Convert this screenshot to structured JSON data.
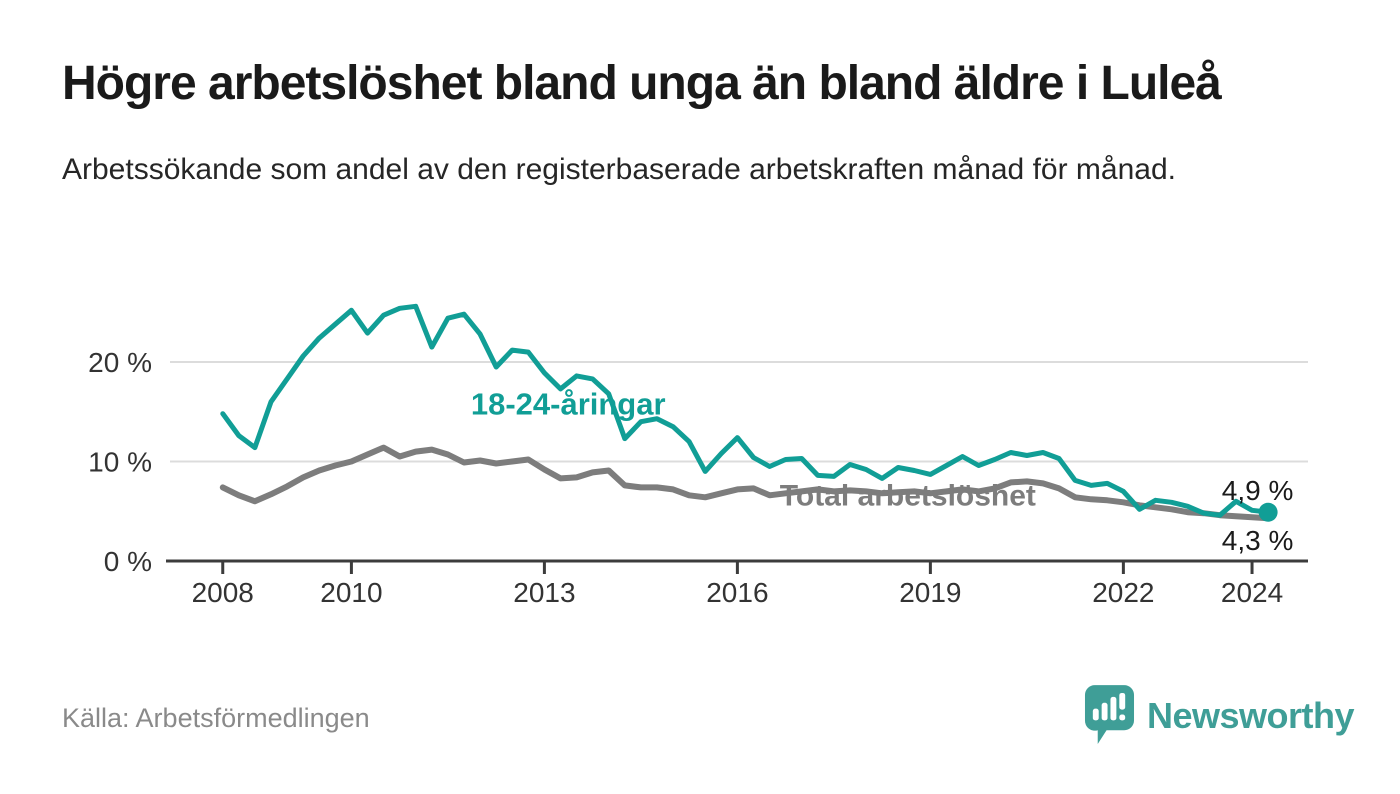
{
  "page": {
    "background": "#ffffff"
  },
  "header": {
    "title": "Högre arbetslöshet bland unga än bland äldre i Luleå",
    "subtitle": "Arbetssökande som andel av den registerbaserade arbetskraften månad för månad."
  },
  "footer": {
    "source": "Källa: Arbetsförmedlingen",
    "brand": "Newsworthy",
    "logo_icon": "newsworthy-speech-bubble-bar-chart-icon"
  },
  "colors": {
    "young_line": "#119e96",
    "total_line": "#7d7d7d",
    "axis_text": "#333333",
    "axis_line": "#3c3c3c",
    "grid": "#dcdcdc",
    "annotation_text": "#1a1a1a",
    "brand_teal": "#3f9e97",
    "title_text": "#1a1a1a",
    "source_text": "#8a8a8a"
  },
  "chart_data": {
    "type": "line",
    "title": "Högre arbetslöshet bland unga än bland äldre i Luleå",
    "subtitle": "Arbetssökande som andel av den registerbaserade arbetskraften månad för månad.",
    "source": "Källa: Arbetsförmedlingen",
    "unit": "percent of registered labour force",
    "x_unit": "year (monthly curve, values approximated at quarterly resolution)",
    "x_start": 2008.0,
    "x_step": 0.25,
    "xlim": [
      2007.18,
      2024.87
    ],
    "ylim": [
      0,
      27
    ],
    "x_ticks": [
      2008,
      2010,
      2013,
      2016,
      2019,
      2022,
      2024
    ],
    "y_ticks": [
      0,
      10,
      20
    ],
    "y_tick_suffix": " %",
    "grid": "horizontal-only",
    "legend": "inline-labels-on-chart",
    "series": [
      {
        "name": "Total arbetslöshet",
        "color": "#7d7d7d",
        "stroke_width": 6,
        "end_dot": false,
        "end_label": "4,3 %",
        "last_value": 4.3,
        "label": {
          "text": "Total arbetslöshet",
          "x": 2018.65,
          "y": 5.6,
          "size": 30
        },
        "values": [
          7.4,
          6.6,
          6.0,
          6.7,
          7.5,
          8.4,
          9.1,
          9.6,
          10.0,
          10.7,
          11.4,
          10.5,
          11.0,
          11.2,
          10.7,
          9.9,
          10.1,
          9.8,
          10.0,
          10.2,
          9.2,
          8.3,
          8.4,
          8.9,
          9.1,
          7.6,
          7.4,
          7.4,
          7.2,
          6.6,
          6.4,
          6.8,
          7.2,
          7.3,
          6.6,
          6.8,
          7.0,
          7.2,
          7.0,
          7.1,
          7.0,
          6.8,
          6.9,
          7.0,
          6.8,
          7.0,
          7.2,
          7.0,
          7.3,
          7.9,
          8.0,
          7.8,
          7.3,
          6.4,
          6.2,
          6.1,
          5.9,
          5.6,
          5.4,
          5.2,
          4.9,
          4.8,
          4.6,
          4.5,
          4.4,
          4.3
        ]
      },
      {
        "name": "18-24-åringar",
        "color": "#119e96",
        "stroke_width": 5,
        "end_dot": true,
        "end_label": "4,9 %",
        "last_value": 4.9,
        "label": {
          "text": "18-24-åringar",
          "x": 2013.37,
          "y": 14.7,
          "size": 31
        },
        "values": [
          14.8,
          12.6,
          11.4,
          16.0,
          18.3,
          20.6,
          22.4,
          23.8,
          25.2,
          22.9,
          24.7,
          25.4,
          25.6,
          21.5,
          24.4,
          24.8,
          22.8,
          19.5,
          21.2,
          21.0,
          18.9,
          17.3,
          18.6,
          18.3,
          16.8,
          12.3,
          14.0,
          14.3,
          13.5,
          12.0,
          9.0,
          10.8,
          12.4,
          10.4,
          9.5,
          10.2,
          10.3,
          8.6,
          8.5,
          9.7,
          9.2,
          8.3,
          9.4,
          9.1,
          8.7,
          9.6,
          10.5,
          9.6,
          10.2,
          10.9,
          10.6,
          10.9,
          10.3,
          8.1,
          7.6,
          7.8,
          7.0,
          5.2,
          6.1,
          5.9,
          5.5,
          4.8,
          4.6,
          6.0,
          5.1,
          4.9
        ]
      }
    ],
    "annotations": [
      {
        "text": "4,9 %",
        "x": 2023.53,
        "y": 6.15,
        "color": "#1a1a1a",
        "size": 28
      },
      {
        "text": "4,3 %",
        "x": 2023.53,
        "y": 1.1,
        "color": "#1a1a1a",
        "size": 28
      }
    ]
  }
}
